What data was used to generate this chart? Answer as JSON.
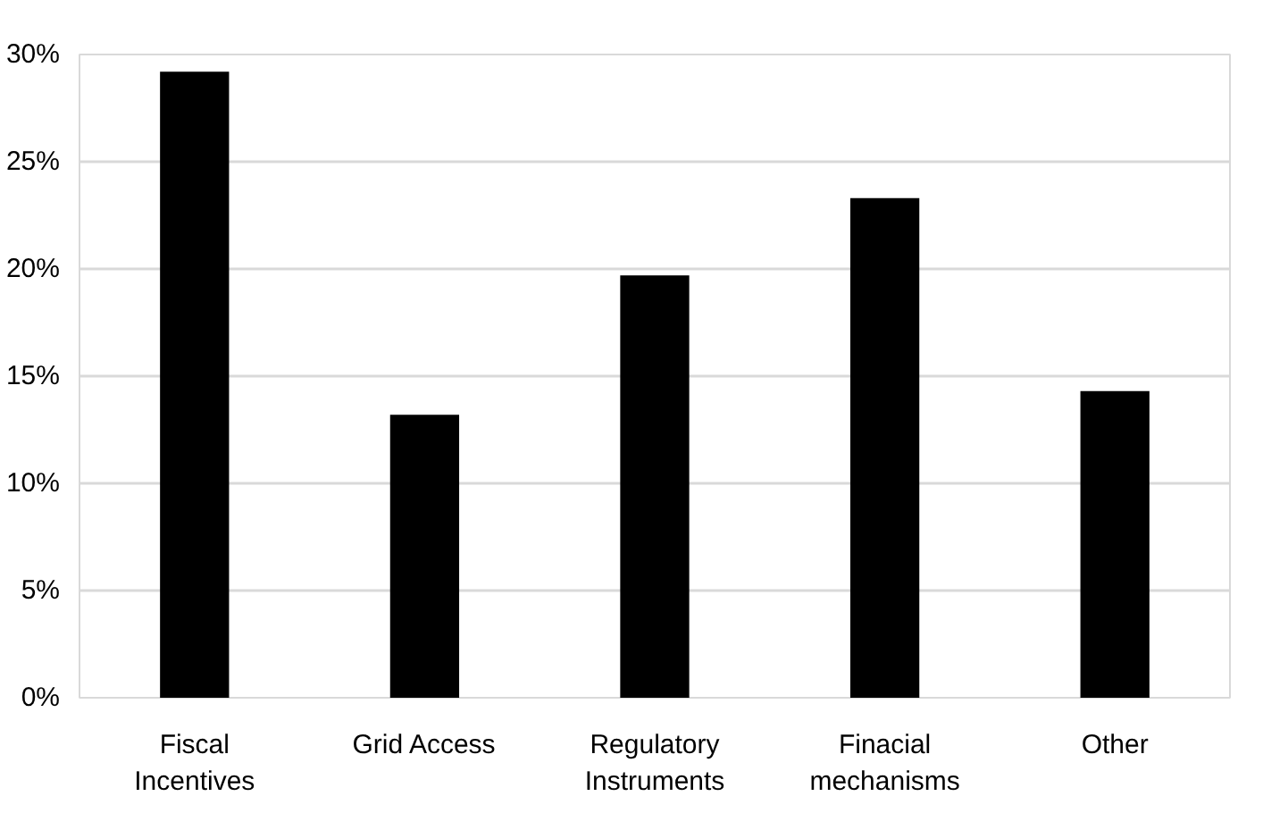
{
  "chart_data": {
    "type": "bar",
    "categories": [
      "Fiscal Incentives",
      "Grid Access",
      "Regulatory Instruments",
      "Finacial mechanisms",
      "Other"
    ],
    "values": [
      29.2,
      13.2,
      19.7,
      23.3,
      14.3
    ],
    "color": "#000000",
    "ylim": [
      0,
      30
    ],
    "yticks": [
      {
        "value": 0,
        "label": "0%"
      },
      {
        "value": 5,
        "label": "5%"
      },
      {
        "value": 10,
        "label": "10%"
      },
      {
        "value": 15,
        "label": "15%"
      },
      {
        "value": 20,
        "label": "20%"
      },
      {
        "value": 25,
        "label": "25%"
      },
      {
        "value": 30,
        "label": "30%"
      }
    ],
    "grid": "y"
  }
}
